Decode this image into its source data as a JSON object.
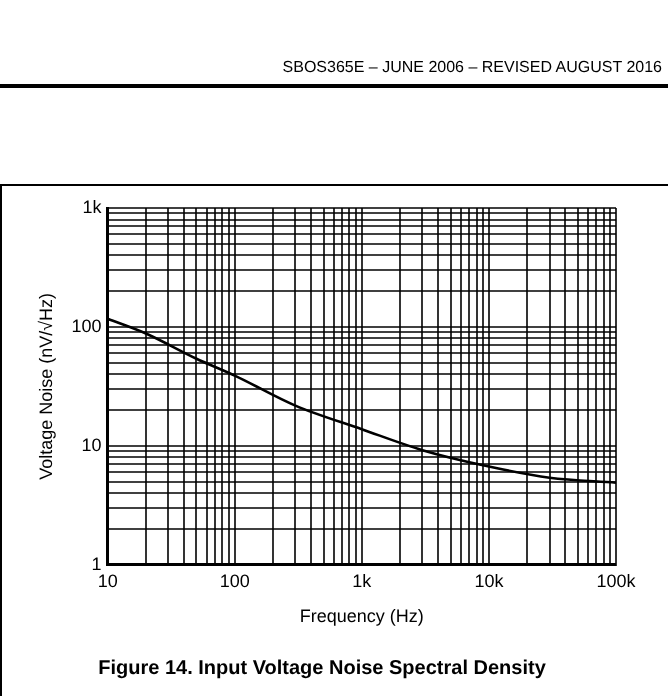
{
  "chart_data": {
    "type": "line",
    "title": "Figure 14. Input Voltage Noise Spectral Density",
    "xlabel": "Frequency (Hz)",
    "ylabel": "Voltage Noise (nV/√Hz)",
    "annotations": [
      "SBOS365E – JUNE 2006 – REVISED AUGUST 2016"
    ],
    "x": [
      10,
      20,
      50,
      100,
      300,
      1000,
      3000,
      10000,
      30000,
      100000
    ],
    "series": [
      {
        "color": "#000000",
        "values": [
          117,
          88,
          54,
          39,
          21.8,
          13.8,
          9.2,
          6.7,
          5.4,
          4.9
        ]
      }
    ],
    "log": "xy",
    "xlim": [
      10,
      100000
    ],
    "ylim": [
      1,
      1000
    ],
    "xticks": [
      10,
      {
        "value": 20,
        "label": null
      },
      {
        "value": 30,
        "label": null
      },
      {
        "value": 40,
        "label": null
      },
      {
        "value": 50,
        "label": null
      },
      {
        "value": 60,
        "label": null
      },
      {
        "value": 70,
        "label": null
      },
      {
        "value": 80,
        "label": null
      },
      {
        "value": 90,
        "label": null
      },
      100,
      {
        "value": 200,
        "label": null
      },
      {
        "value": 300,
        "label": null
      },
      {
        "value": 400,
        "label": null
      },
      {
        "value": 500,
        "label": null
      },
      {
        "value": 600,
        "label": null
      },
      {
        "value": 700,
        "label": null
      },
      {
        "value": 800,
        "label": null
      },
      {
        "value": 900,
        "label": null
      },
      {
        "value": 1000,
        "label": "1k"
      },
      {
        "value": 2000,
        "label": null
      },
      {
        "value": 3000,
        "label": null
      },
      {
        "value": 4000,
        "label": null
      },
      {
        "value": 5000,
        "label": null
      },
      {
        "value": 6000,
        "label": null
      },
      {
        "value": 7000,
        "label": null
      },
      {
        "value": 8000,
        "label": null
      },
      {
        "value": 9000,
        "label": null
      },
      {
        "value": 10000,
        "label": "10k"
      },
      {
        "value": 20000,
        "label": null
      },
      {
        "value": 30000,
        "label": null
      },
      {
        "value": 40000,
        "label": null
      },
      {
        "value": 50000,
        "label": null
      },
      {
        "value": 60000,
        "label": null
      },
      {
        "value": 70000,
        "label": null
      },
      {
        "value": 80000,
        "label": null
      },
      {
        "value": 90000,
        "label": null
      },
      {
        "value": 100000,
        "label": "100k"
      }
    ],
    "yticks": [
      1,
      {
        "value": 2,
        "label": null
      },
      {
        "value": 3,
        "label": null
      },
      {
        "value": 4,
        "label": null
      },
      {
        "value": 5,
        "label": null
      },
      {
        "value": 6,
        "label": null
      },
      {
        "value": 7,
        "label": null
      },
      {
        "value": 8,
        "label": null
      },
      {
        "value": 9,
        "label": null
      },
      10,
      {
        "value": 20,
        "label": null
      },
      {
        "value": 30,
        "label": null
      },
      {
        "value": 40,
        "label": null
      },
      {
        "value": 50,
        "label": null
      },
      {
        "value": 60,
        "label": null
      },
      {
        "value": 70,
        "label": null
      },
      {
        "value": 80,
        "label": null
      },
      {
        "value": 90,
        "label": null
      },
      100,
      {
        "value": 200,
        "label": null
      },
      {
        "value": 300,
        "label": null
      },
      {
        "value": 400,
        "label": null
      },
      {
        "value": 500,
        "label": null
      },
      {
        "value": 600,
        "label": null
      },
      {
        "value": 700,
        "label": null
      },
      {
        "value": 800,
        "label": null
      },
      {
        "value": 900,
        "label": null
      },
      {
        "value": 1000,
        "label": "1k"
      }
    ],
    "grid": true,
    "legend": false,
    "marker": "none",
    "line_style": "solid"
  }
}
